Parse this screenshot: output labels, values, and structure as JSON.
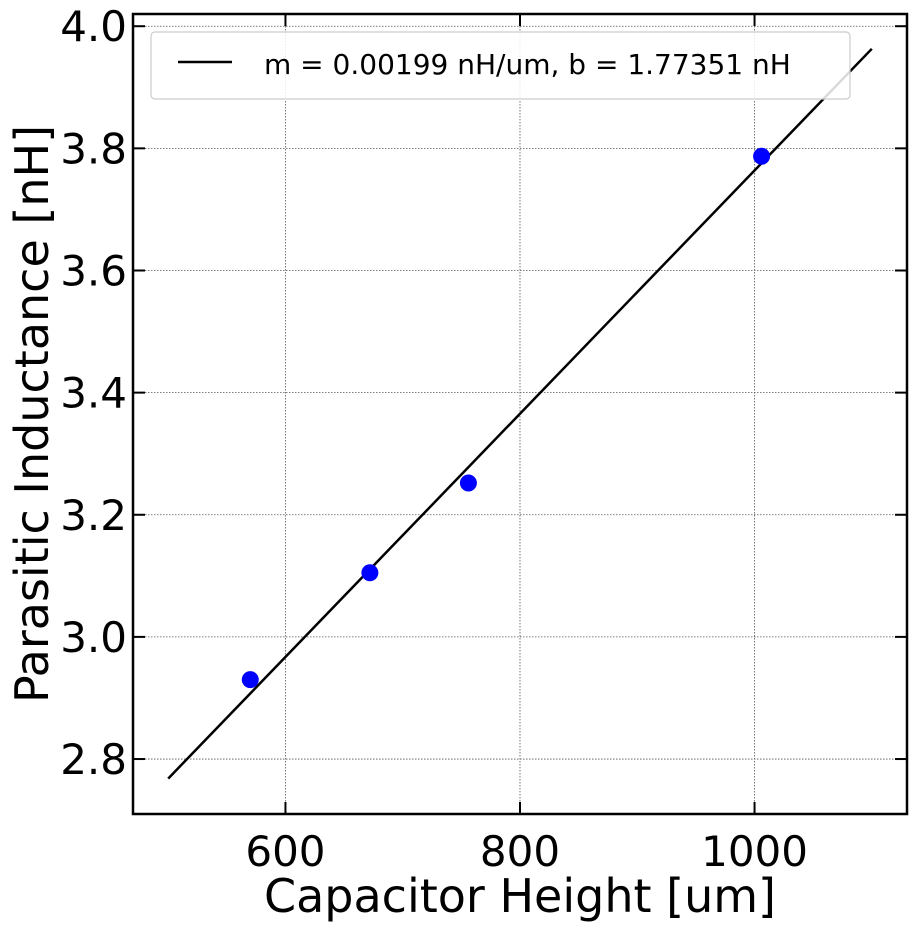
{
  "chart_data": {
    "type": "scatter",
    "xlabel": "Capacitor Height [um]",
    "ylabel": "Parasitic Inductance [nH]",
    "xlim": [
      470,
      1130
    ],
    "ylim": [
      2.71,
      4.02
    ],
    "x_ticks": [
      600,
      800,
      1000
    ],
    "y_ticks": [
      2.8,
      3.0,
      3.2,
      3.4,
      3.6,
      3.8,
      4.0
    ],
    "grid": true,
    "legend_position": "top",
    "series": [
      {
        "kind": "scatter",
        "color": "#0000ff",
        "x": [
          570,
          672,
          756,
          1006
        ],
        "y": [
          2.93,
          3.105,
          3.252,
          3.787
        ]
      },
      {
        "kind": "line",
        "name": "m = 0.00199 nH/um, b = 1.77351 nH",
        "color": "#000000",
        "x": [
          500,
          1100
        ],
        "y": [
          2.768,
          3.963
        ]
      }
    ]
  }
}
